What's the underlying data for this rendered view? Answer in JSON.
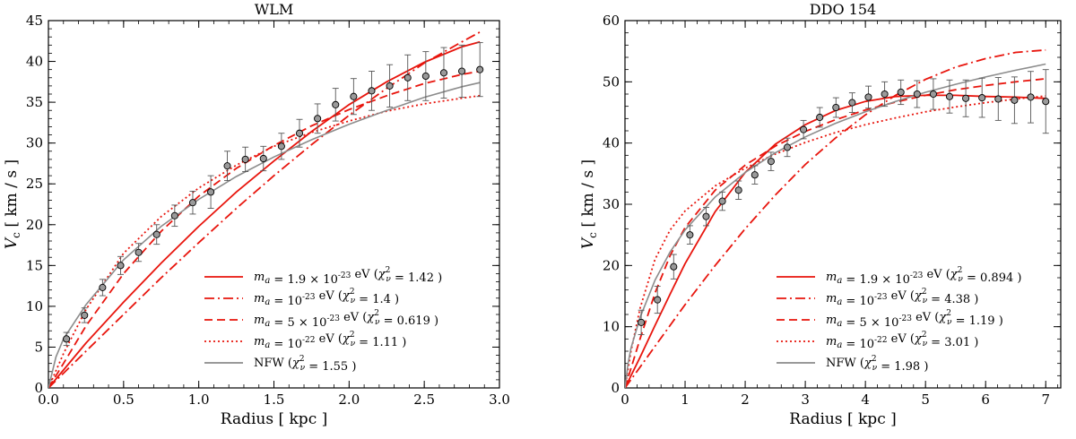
{
  "chart_data": [
    {
      "type": "line",
      "title": "WLM",
      "xlabel": "Radius [ kpc ]",
      "ylabel": "V_c [ km / s ]",
      "xlim": [
        0,
        3.0
      ],
      "ylim": [
        0,
        45
      ],
      "xticks": [
        0.0,
        0.5,
        1.0,
        1.5,
        2.0,
        2.5,
        3.0
      ],
      "xtick_labels": [
        "0.0",
        "0.5",
        "1.0",
        "1.5",
        "2.0",
        "2.5",
        "3.0"
      ],
      "yticks": [
        0,
        5,
        10,
        15,
        20,
        25,
        30,
        35,
        40,
        45
      ],
      "ytick_labels": [
        "0",
        "5",
        "10",
        "15",
        "20",
        "25",
        "30",
        "35",
        "40",
        "45"
      ],
      "legend_position": "lower-right",
      "observed": {
        "x": [
          0.12,
          0.24,
          0.36,
          0.48,
          0.6,
          0.72,
          0.84,
          0.96,
          1.08,
          1.19,
          1.31,
          1.43,
          1.55,
          1.67,
          1.79,
          1.91,
          2.03,
          2.15,
          2.27,
          2.39,
          2.51,
          2.63,
          2.75,
          2.87
        ],
        "y": [
          6.0,
          8.9,
          12.3,
          15.0,
          16.6,
          18.8,
          21.1,
          22.7,
          24.0,
          27.2,
          28.0,
          28.1,
          29.6,
          31.2,
          33.0,
          34.7,
          35.7,
          36.4,
          37.0,
          38.0,
          38.2,
          38.6,
          38.8,
          39.0
        ],
        "err": [
          0.8,
          0.9,
          1.0,
          1.1,
          1.1,
          1.2,
          1.3,
          1.4,
          2.0,
          1.8,
          1.5,
          1.5,
          1.6,
          1.7,
          1.8,
          2.0,
          2.2,
          2.4,
          2.6,
          2.8,
          3.0,
          3.1,
          3.2,
          3.3
        ]
      },
      "series": [
        {
          "name": "m_a = 1.9 × 10^-23 eV (χ²_ν = 1.42 )",
          "color": "#e8150d",
          "dash": "solid",
          "x": [
            0,
            0.1,
            0.25,
            0.5,
            0.75,
            1.0,
            1.25,
            1.5,
            1.75,
            2.0,
            2.25,
            2.5,
            2.75,
            2.87
          ],
          "y": [
            0,
            2.2,
            5.5,
            10.5,
            15.3,
            19.8,
            24.0,
            27.8,
            31.4,
            34.7,
            37.5,
            39.9,
            41.8,
            42.4
          ]
        },
        {
          "name": "m_a = 10^-23 eV (χ²_ν = 1.4 )",
          "color": "#e8150d",
          "dash": "dashdot",
          "x": [
            0,
            0.1,
            0.25,
            0.5,
            0.75,
            1.0,
            1.25,
            1.5,
            1.75,
            2.0,
            2.25,
            2.5,
            2.75,
            2.87
          ],
          "y": [
            0,
            1.8,
            4.5,
            9.0,
            13.5,
            17.8,
            22.0,
            26.0,
            29.8,
            33.4,
            36.7,
            39.8,
            42.4,
            43.6
          ]
        },
        {
          "name": "m_a = 5 × 10^-23 eV (χ²_ν = 0.619 )",
          "color": "#e8150d",
          "dash": "dashed",
          "x": [
            0,
            0.1,
            0.25,
            0.5,
            0.75,
            1.0,
            1.25,
            1.5,
            1.75,
            2.0,
            2.25,
            2.5,
            2.75,
            2.87
          ],
          "y": [
            0,
            3.0,
            7.6,
            14.0,
            19.2,
            23.5,
            26.9,
            29.7,
            32.1,
            34.1,
            35.8,
            37.3,
            38.4,
            38.8
          ]
        },
        {
          "name": "m_a = 10^-22 eV (χ²_ν = 1.11 )",
          "color": "#e8150d",
          "dash": "dotted",
          "x": [
            0,
            0.1,
            0.25,
            0.5,
            0.75,
            1.0,
            1.25,
            1.5,
            1.75,
            2.0,
            2.25,
            2.5,
            2.75,
            2.87
          ],
          "y": [
            0,
            4.2,
            9.6,
            16.5,
            21.0,
            24.5,
            27.3,
            29.6,
            31.3,
            32.7,
            33.9,
            34.8,
            35.5,
            35.8
          ]
        },
        {
          "name": "NFW (χ²_ν = 1.55 )",
          "color": "#8c8c8c",
          "dash": "solid",
          "x": [
            0,
            0.05,
            0.1,
            0.25,
            0.5,
            0.75,
            1.0,
            1.25,
            1.5,
            1.75,
            2.0,
            2.25,
            2.5,
            2.75,
            2.87
          ],
          "y": [
            0,
            3.8,
            6.0,
            10.2,
            15.7,
            19.8,
            23.1,
            25.9,
            28.3,
            30.4,
            32.3,
            34.0,
            35.6,
            36.9,
            37.4
          ]
        }
      ]
    },
    {
      "type": "line",
      "title": "DDO 154",
      "xlabel": "Radius [ kpc ]",
      "ylabel": "V_c [ km / s ]",
      "xlim": [
        0,
        7.25
      ],
      "ylim": [
        0,
        60
      ],
      "xticks": [
        0,
        1,
        2,
        3,
        4,
        5,
        6,
        7
      ],
      "xtick_labels": [
        "0",
        "1",
        "2",
        "3",
        "4",
        "5",
        "6",
        "7"
      ],
      "yticks": [
        0,
        10,
        20,
        30,
        40,
        50,
        60
      ],
      "ytick_labels": [
        "0",
        "10",
        "20",
        "30",
        "40",
        "50",
        "60"
      ],
      "legend_position": "lower-right",
      "observed": {
        "x": [
          0.27,
          0.54,
          0.81,
          1.08,
          1.35,
          1.62,
          1.89,
          2.16,
          2.43,
          2.7,
          2.97,
          3.24,
          3.51,
          3.78,
          4.05,
          4.32,
          4.59,
          4.86,
          5.13,
          5.4,
          5.67,
          5.94,
          6.21,
          6.48,
          6.75,
          7.0
        ],
        "y": [
          10.7,
          14.4,
          19.8,
          25.0,
          28.0,
          30.5,
          32.3,
          34.8,
          37.0,
          39.3,
          42.2,
          44.2,
          45.8,
          46.6,
          47.5,
          48.0,
          48.3,
          48.0,
          48.0,
          47.6,
          47.3,
          47.4,
          47.2,
          47.0,
          47.5,
          46.8
        ],
        "err": [
          2.0,
          2.2,
          2.0,
          1.5,
          1.5,
          1.5,
          1.5,
          1.5,
          1.5,
          1.5,
          1.5,
          1.6,
          1.6,
          1.6,
          1.8,
          2.0,
          2.0,
          2.2,
          2.5,
          2.7,
          3.0,
          3.2,
          3.5,
          3.8,
          4.2,
          5.2
        ]
      },
      "series": [
        {
          "name": "m_a = 1.9 × 10^-23 eV (χ²_ν = 0.894 )",
          "color": "#e8150d",
          "dash": "solid",
          "x": [
            0,
            0.25,
            0.5,
            0.75,
            1.0,
            1.5,
            2.0,
            2.5,
            3.0,
            3.5,
            4.0,
            4.5,
            5.0,
            5.5,
            6.0,
            6.5,
            7.0
          ],
          "y": [
            0,
            5.0,
            10.2,
            15.3,
            20.3,
            28.8,
            35.2,
            39.8,
            43.0,
            45.3,
            46.8,
            47.6,
            47.8,
            47.8,
            47.6,
            47.5,
            47.3
          ]
        },
        {
          "name": "m_a = 10^-23 eV (χ²_ν = 4.38 )",
          "color": "#e8150d",
          "dash": "dashdot",
          "x": [
            0,
            0.25,
            0.5,
            1.0,
            1.5,
            2.0,
            2.5,
            3.0,
            3.5,
            4.0,
            4.5,
            5.0,
            5.5,
            6.0,
            6.5,
            7.0
          ],
          "y": [
            0,
            3.4,
            6.8,
            13.6,
            20.0,
            26.0,
            31.5,
            36.5,
            40.8,
            44.6,
            47.8,
            50.4,
            52.4,
            53.8,
            54.8,
            55.2
          ]
        },
        {
          "name": "m_a = 5 × 10^-23 eV (χ²_ν = 1.19 )",
          "color": "#e8150d",
          "dash": "dashed",
          "x": [
            0,
            0.25,
            0.5,
            0.75,
            1.0,
            1.5,
            2.0,
            2.5,
            3.0,
            3.5,
            4.0,
            4.5,
            5.0,
            5.5,
            6.0,
            6.5,
            7.0
          ],
          "y": [
            0,
            8.0,
            15.5,
            21.6,
            26.2,
            32.3,
            36.4,
            39.5,
            41.9,
            43.8,
            45.4,
            46.7,
            47.8,
            48.7,
            49.4,
            50.0,
            50.5
          ]
        },
        {
          "name": "m_a = 10^-22 eV (χ²_ν = 3.01 )",
          "color": "#e8150d",
          "dash": "dotted",
          "x": [
            0,
            0.1,
            0.25,
            0.5,
            0.75,
            1.0,
            1.5,
            2.0,
            2.5,
            3.0,
            3.5,
            4.0,
            4.5,
            5.0,
            5.5,
            6.0,
            6.5,
            7.0
          ],
          "y": [
            0,
            6.0,
            13.0,
            21.0,
            25.8,
            28.9,
            33.0,
            35.9,
            38.2,
            40.1,
            41.7,
            43.0,
            44.1,
            45.1,
            45.9,
            46.6,
            47.2,
            47.7
          ]
        },
        {
          "name": "NFW (χ²_ν = 1.98 )",
          "color": "#8c8c8c",
          "dash": "solid",
          "x": [
            0,
            0.05,
            0.1,
            0.25,
            0.5,
            0.75,
            1.0,
            1.5,
            2.0,
            2.5,
            3.0,
            3.5,
            4.0,
            4.5,
            5.0,
            5.5,
            6.0,
            6.5,
            7.0
          ],
          "y": [
            0,
            4.0,
            6.5,
            11.5,
            17.6,
            22.2,
            25.8,
            31.2,
            35.2,
            38.4,
            41.0,
            43.2,
            45.1,
            46.8,
            48.3,
            49.6,
            50.8,
            51.9,
            52.9
          ]
        }
      ]
    }
  ]
}
